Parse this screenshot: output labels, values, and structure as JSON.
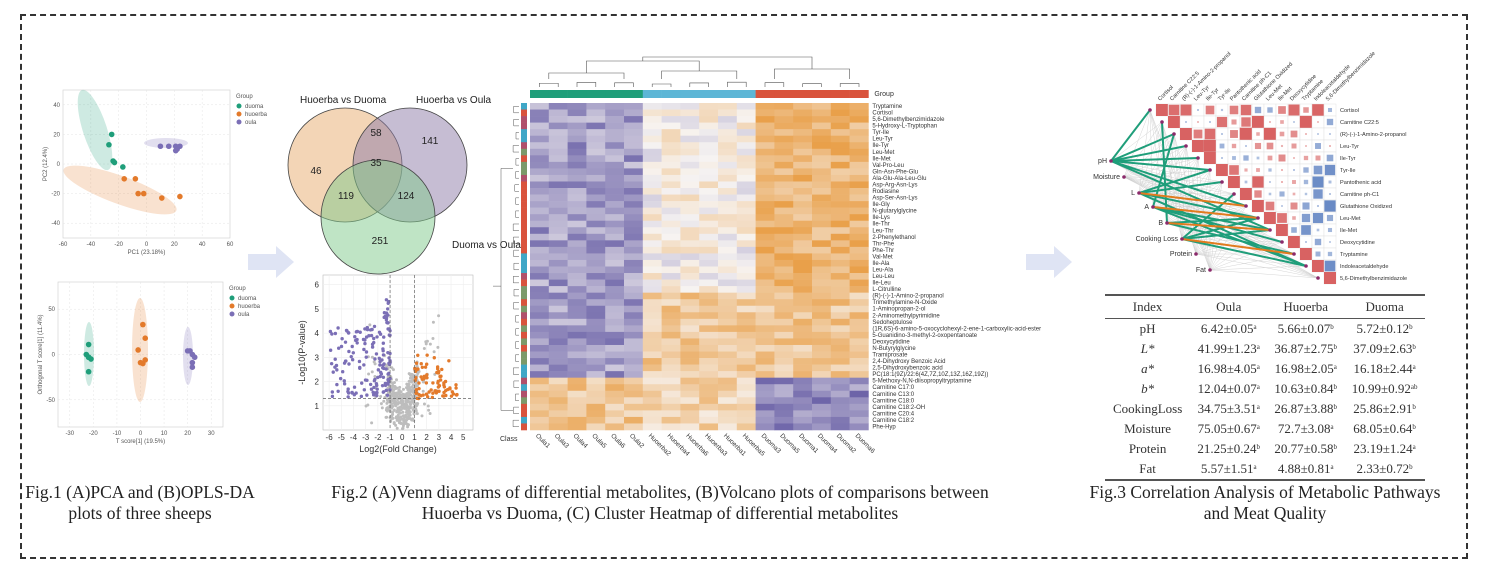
{
  "colors": {
    "duoma": "#1f9e7a",
    "huoerba": "#e37a2b",
    "oula": "#7b6fb6",
    "arrow": "#dfe4f4",
    "heat_low": "#6c63a8",
    "heat_mid": "#f7f4f2",
    "heat_high": "#e9a04a",
    "corr_green": "#1f9e7a",
    "corr_orange": "#e07b1f",
    "corr_pos": "#d65a5a",
    "corr_neg": "#5b7fc0"
  },
  "fig1": {
    "caption": [
      "Fig.1 (A)PCA and (B)OPLS-DA",
      "plots of three sheeps"
    ],
    "legend_title": "Group",
    "groups": [
      "duoma",
      "huoerba",
      "oula"
    ],
    "pca": {
      "type": "scatter",
      "xlabel": "PC1 (23.18%)",
      "ylabel": "PC2 (12.4%)",
      "xlim": [
        -60,
        60
      ],
      "ylim": [
        -50,
        50
      ],
      "xticks": [
        "-60",
        "-40",
        "-20",
        "0",
        "20",
        "40",
        "60"
      ],
      "yticks": [
        "-40",
        "-20",
        "0",
        "20",
        "40"
      ],
      "series": [
        {
          "name": "duoma",
          "x": [
            -25,
            -27,
            -24,
            -23,
            -17
          ],
          "y": [
            20,
            13,
            2,
            1,
            -2
          ]
        },
        {
          "name": "huoerba",
          "x": [
            -16,
            -8,
            -6,
            -2,
            11,
            24
          ],
          "y": [
            -10,
            -10,
            -20,
            -20,
            -23,
            -22
          ]
        },
        {
          "name": "oula",
          "x": [
            10,
            16,
            21,
            24,
            21,
            22
          ],
          "y": [
            12,
            12,
            12,
            12,
            9,
            10
          ]
        }
      ]
    },
    "oplsda": {
      "type": "scatter",
      "xlabel": "T score[1] (19.5%)",
      "ylabel": "Orthogonal T score[1] (11.4%)",
      "xlim": [
        -35,
        35
      ],
      "ylim": [
        -80,
        80
      ],
      "xticks": [
        "-30",
        "-20",
        "-10",
        "0",
        "10",
        "20",
        "30"
      ],
      "yticks": [
        "-50",
        "0",
        "50"
      ],
      "series": [
        {
          "name": "duoma",
          "x": [
            -22,
            -23,
            -22,
            -21,
            -22,
            -22
          ],
          "y": [
            11,
            0,
            -3,
            -5,
            -3,
            -19
          ]
        },
        {
          "name": "huoerba",
          "x": [
            1,
            2,
            -1,
            2,
            0,
            1
          ],
          "y": [
            33,
            18,
            5,
            -6,
            -9,
            -10
          ]
        },
        {
          "name": "oula",
          "x": [
            20,
            21,
            22,
            23,
            22,
            22
          ],
          "y": [
            4,
            4,
            0,
            -3,
            -9,
            -14
          ]
        }
      ]
    }
  },
  "fig2": {
    "caption": [
      "Fig.2 (A)Venn diagrams of differential metabolites, (B)Volcano plots of comparisons between",
      "Huoerba vs Duoma, (C) Cluster Heatmap of differential metabolites"
    ],
    "venn": {
      "sets": [
        "Huoerba vs Duoma",
        "Huoerba vs Oula",
        "Duoma vs Oula"
      ],
      "only_a": "46",
      "ab": "58",
      "only_b": "141",
      "abc": "35",
      "ac": "119",
      "bc": "124",
      "only_c": "251"
    },
    "volcano": {
      "type": "scatter",
      "xlabel": "Log2(Fold Change)",
      "ylabel": "-Log10(P-value)",
      "xlim": [
        -6.5,
        5.8
      ],
      "ylim": [
        0,
        6.4
      ],
      "xticks": [
        "-6",
        "-5",
        "-4",
        "-3",
        "-2",
        "-1",
        "0",
        "1",
        "2",
        "3",
        "4",
        "5"
      ],
      "yticks": [
        "1",
        "2",
        "3",
        "4",
        "5",
        "6"
      ],
      "fc_threshold": [
        -1,
        1
      ],
      "p_threshold": 1.3
    },
    "heatmap": {
      "group_label": "Group",
      "class_label": "Class",
      "columns": [
        "Oula1",
        "Oula3",
        "Oula4",
        "Oula5",
        "Oula6",
        "Oula2",
        "Huoerba2",
        "Huoerba4",
        "Huoerba6",
        "Huoerba3",
        "Huoerba1",
        "Huoerba5",
        "Duoma3",
        "Duoma5",
        "Duoma1",
        "Duoma4",
        "Duoma2",
        "Duoma6"
      ],
      "rows": [
        "Tryptamine",
        "Cortisol",
        "5,6-Dimethylbenzimidazole",
        "5-Hydroxy-L-Tryptophan",
        "Tyr-Ile",
        "Leu-Tyr",
        "Ile-Tyr",
        "Leu-Met",
        "Ile-Met",
        "Val-Pro-Leu",
        "Gln-Asn-Phe-Glu",
        "Ala-Glu-Ala-Leu-Glu",
        "Asp-Arg-Asn-Lys",
        "Rodiasine",
        "Asp-Ser-Asn-Lys",
        "Ile-Gly",
        "N-glutarylglycine",
        "Ile-Lys",
        "Ile-Thr",
        "Leu-Thr",
        "2-Phenylethanol",
        "Thr-Phe",
        "Phe-Thr",
        "Val-Met",
        "Ile-Ala",
        "Leu-Ala",
        "Leu-Leu",
        "Ile-Leu",
        "L-Citrulline",
        "(R)-(-)-1-Amino-2-propanol",
        "Trimethylamine-N-Oxide",
        "1-Aminopropan-2-ol",
        "2-Aminomethylpyrimidine",
        "Sedoheptulose",
        "(1R,6S)-6-amino-5-oxocyclohexyl-2-ene-1-carboxylic-acid-ester",
        "5-Guanidino-3-methyl-2-oxopentanoate",
        "Deoxycytidine",
        "N-Butyrylglycine",
        "Tramiprosate",
        "2,4-Dihydroxy Benzoic Acid",
        "2,5-Dihydroxybenzoic acid",
        "PC(18:1(9Z)/22:6(4Z,7Z,10Z,13Z,16Z,19Z))",
        "5-Methoxy-N,N-diisopropyltryptamine",
        "Carnitine C17:0",
        "Carnitine C13:0",
        "Carnitine C18:0",
        "Carnitine C18:2-OH",
        "Carnitine C20:4",
        "Carnitine C18:2",
        "Phe-Hyp"
      ]
    }
  },
  "fig3": {
    "caption": [
      "Fig.3 Correlation Analysis of Metabolic Pathways",
      "and Meat Quality"
    ],
    "metabolites": [
      "Cortisol",
      "Carnitine C22:5",
      "(R)-(-)-1-Amino-2-propanol",
      "Leu-Tyr",
      "Ile-Tyr",
      "Tyr-Ile",
      "Pantothenic acid",
      "Carnitine ph-C1",
      "Glutathione Oxidized",
      "Leu-Met",
      "Ile-Met",
      "Deoxycytidine",
      "Tryptamine",
      "Indoleacetaldehyde",
      "5,6-Dimethylbenzimidazole"
    ],
    "traits": [
      "pH",
      "Moisture",
      "L",
      "A",
      "B",
      "Cooking Loss",
      "Protein",
      "Fat"
    ],
    "table": {
      "headers": [
        "Index",
        "Oula",
        "Huoerba",
        "Duoma"
      ],
      "rows": [
        {
          "index": "pH",
          "cells": [
            {
              "v": "6.42±0.05",
              "s": "a"
            },
            {
              "v": "5.66±0.07",
              "s": "b"
            },
            {
              "v": "5.72±0.12",
              "s": "b"
            }
          ]
        },
        {
          "index": "L*",
          "cells": [
            {
              "v": "41.99±1.23",
              "s": "a"
            },
            {
              "v": "36.87±2.75",
              "s": "b"
            },
            {
              "v": "37.09±2.63",
              "s": "b"
            }
          ]
        },
        {
          "index": "a*",
          "cells": [
            {
              "v": "16.98±4.05",
              "s": "a"
            },
            {
              "v": "16.98±2.05",
              "s": "a"
            },
            {
              "v": "16.18±2.44",
              "s": "a"
            }
          ]
        },
        {
          "index": "b*",
          "cells": [
            {
              "v": "12.04±0.07",
              "s": "a"
            },
            {
              "v": "10.63±0.84",
              "s": "b"
            },
            {
              "v": "10.99±0.92",
              "s": "ab"
            }
          ]
        },
        {
          "index": "CookingLoss",
          "cells": [
            {
              "v": "34.75±3.51",
              "s": "a"
            },
            {
              "v": "26.87±3.88",
              "s": "b"
            },
            {
              "v": "25.86±2.91",
              "s": "b"
            }
          ]
        },
        {
          "index": "Moisture",
          "cells": [
            {
              "v": "75.05±0.67",
              "s": "a"
            },
            {
              "v": "72.7±3.08",
              "s": "a"
            },
            {
              "v": "68.05±0.64",
              "s": "b"
            }
          ]
        },
        {
          "index": "Protein",
          "cells": [
            {
              "v": "21.25±0.24",
              "s": "b"
            },
            {
              "v": "20.77±0.58",
              "s": "b"
            },
            {
              "v": "23.19±1.24",
              "s": "a"
            }
          ]
        },
        {
          "index": "Fat",
          "cells": [
            {
              "v": "5.57±1.51",
              "s": "a"
            },
            {
              "v": "4.88±0.81",
              "s": "a"
            },
            {
              "v": "2.33±0.72",
              "s": "b"
            }
          ]
        }
      ]
    }
  }
}
